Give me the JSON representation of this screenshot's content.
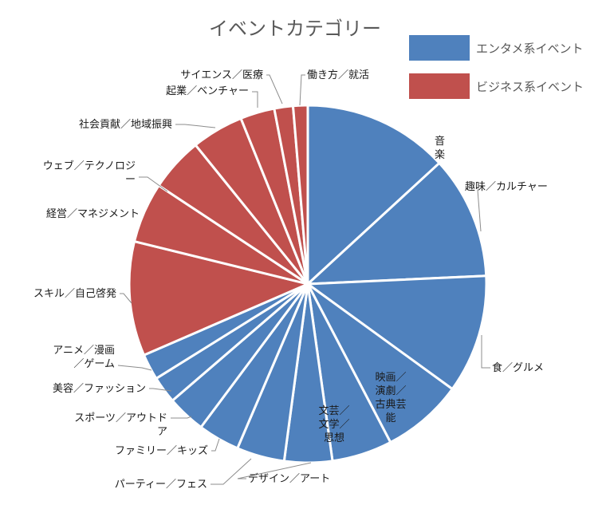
{
  "chart_data": {
    "type": "pie",
    "title": "イベントカテゴリー",
    "legend": {
      "position": "top-right",
      "entries": [
        {
          "name": "エンタメ系イベント",
          "color": "#4f81bd"
        },
        {
          "name": "ビジネス系イベント",
          "color": "#c0504d"
        }
      ]
    },
    "slices": [
      {
        "label": "音楽",
        "group": 0,
        "value": 14.0
      },
      {
        "label": "趣味／カルチャー",
        "group": 0,
        "value": 11.8
      },
      {
        "label": "食／グルメ",
        "group": 0,
        "value": 11.4
      },
      {
        "label": "映画／演劇／古典芸能",
        "group": 0,
        "value": 7.8
      },
      {
        "label": "文芸／文学／思想",
        "group": 0,
        "value": 5.8
      },
      {
        "label": "デザイン／アート",
        "group": 0,
        "value": 4.6
      },
      {
        "label": "パーティー／フェス",
        "group": 0,
        "value": 4.6
      },
      {
        "label": "ファミリー／キッズ",
        "group": 0,
        "value": 4.0
      },
      {
        "label": "スポーツ／アウトドア",
        "group": 0,
        "value": 3.7
      },
      {
        "label": "美容／ファッション",
        "group": 0,
        "value": 2.6
      },
      {
        "label": "アニメ／漫画／ゲーム",
        "group": 0,
        "value": 2.5
      },
      {
        "label": "スキル／自己啓発",
        "group": 1,
        "value": 11.0
      },
      {
        "label": "経営／マネジメント",
        "group": 1,
        "value": 5.8
      },
      {
        "label": "ウェブ／テクノロジー",
        "group": 1,
        "value": 5.2
      },
      {
        "label": "社会貢献／地域振興",
        "group": 1,
        "value": 5.0
      },
      {
        "label": "起業／ベンチャー",
        "group": 1,
        "value": 3.3
      },
      {
        "label": "サイエンス／医療",
        "group": 1,
        "value": 1.8
      },
      {
        "label": "働き方／就活",
        "group": 1,
        "value": 1.4
      }
    ]
  }
}
